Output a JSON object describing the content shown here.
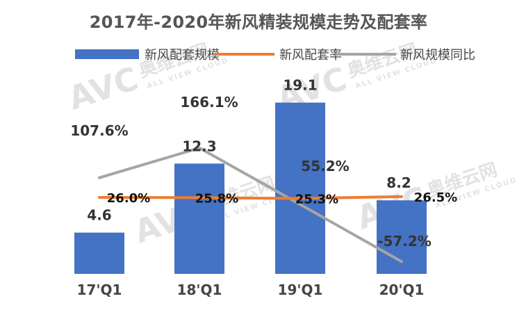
{
  "chart_data": {
    "type": "bar",
    "title": "2017年-2020年新风精装规模走势及配套率",
    "categories": [
      "17'Q1",
      "18'Q1",
      "19'Q1",
      "20'Q1"
    ],
    "series": [
      {
        "name": "新风配套规模",
        "type": "bar",
        "color": "#4472C4",
        "values": [
          4.6,
          12.3,
          19.1,
          8.2
        ],
        "labels": [
          "4.6",
          "12.3",
          "19.1",
          "8.2"
        ]
      },
      {
        "name": "新风配套率",
        "type": "line",
        "color": "#ED7D31",
        "values": [
          26.0,
          25.8,
          25.3,
          26.5
        ],
        "labels": [
          "26.0%",
          "25.8%",
          "25.3%",
          "26.5%"
        ]
      },
      {
        "name": "新风规模同比",
        "type": "line",
        "color": "#A5A5A5",
        "values": [
          107.6,
          166.1,
          55.2,
          -57.2
        ],
        "labels": [
          "107.6%",
          "166.1%",
          "55.2%",
          "-57.2%"
        ]
      }
    ],
    "legend_position": "top",
    "grid": false,
    "ylim_bars": [
      0,
      25
    ],
    "watermark": {
      "logo_text": "AVC",
      "cn_text": "奥维云网",
      "en_text": "ALL VIEW CLOUD"
    }
  }
}
